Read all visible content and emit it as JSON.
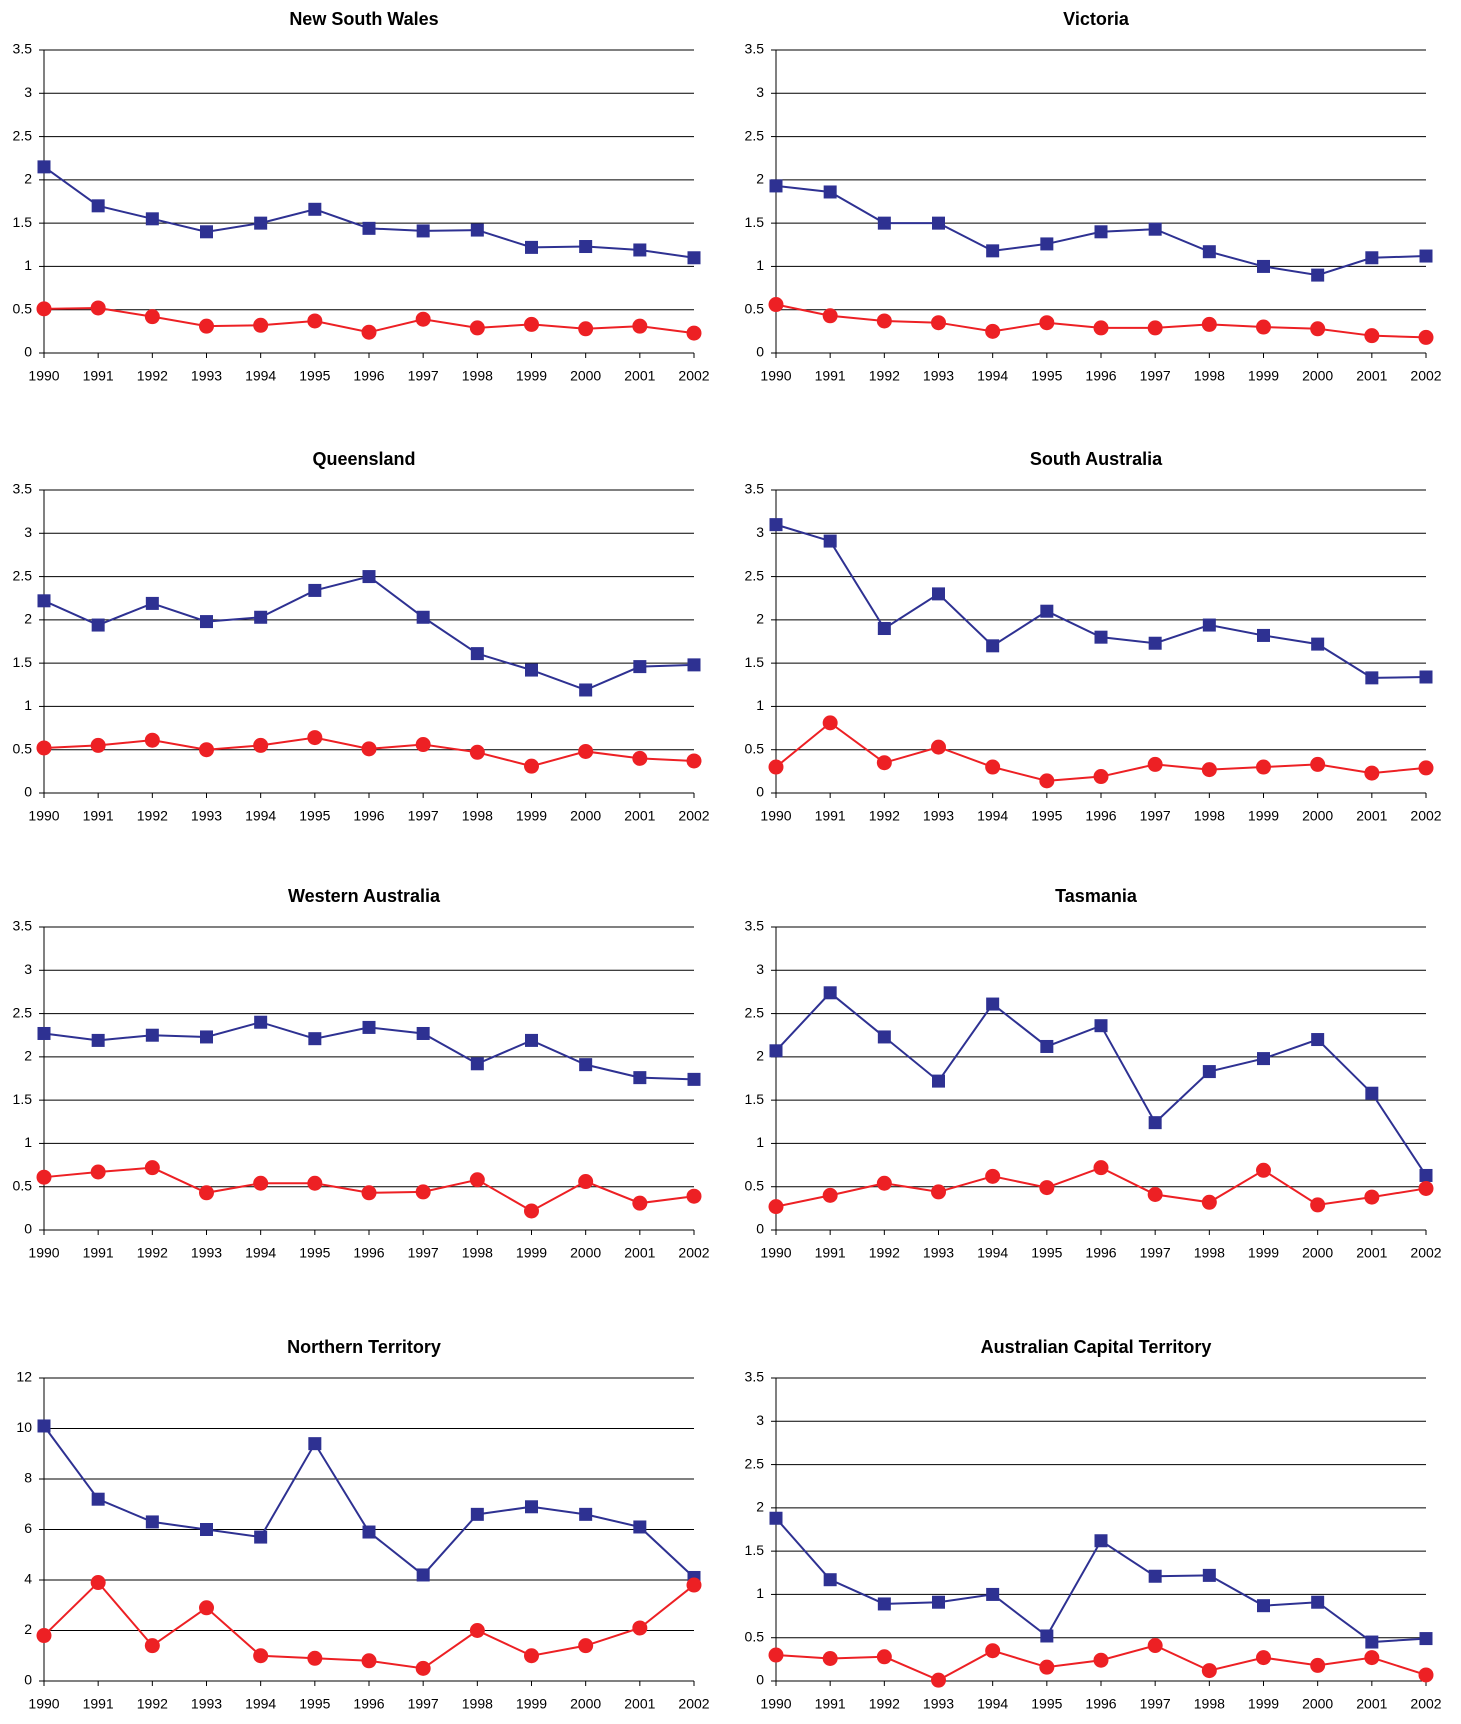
{
  "chart_data": [
    {
      "type": "line",
      "title": "New South Wales",
      "categories": [
        "1990",
        "1991",
        "1992",
        "1993",
        "1994",
        "1995",
        "1996",
        "1997",
        "1998",
        "1999",
        "2000",
        "2001",
        "2002"
      ],
      "series": [
        {
          "color": "#2e3192",
          "marker": "square",
          "values": [
            2.15,
            1.7,
            1.55,
            1.4,
            1.5,
            1.66,
            1.44,
            1.41,
            1.42,
            1.22,
            1.23,
            1.19,
            1.1
          ]
        },
        {
          "color": "#ed2024",
          "marker": "circle",
          "values": [
            0.51,
            0.52,
            0.42,
            0.31,
            0.32,
            0.37,
            0.24,
            0.39,
            0.29,
            0.33,
            0.28,
            0.31,
            0.23
          ]
        }
      ],
      "ylim": [
        0,
        3.5
      ],
      "yticks": [
        0,
        0.5,
        1,
        1.5,
        2,
        2.5,
        3,
        3.5
      ],
      "grid": true
    },
    {
      "type": "line",
      "title": "Victoria",
      "categories": [
        "1990",
        "1991",
        "1992",
        "1993",
        "1994",
        "1995",
        "1996",
        "1997",
        "1998",
        "1999",
        "2000",
        "2001",
        "2002"
      ],
      "series": [
        {
          "color": "#2e3192",
          "marker": "square",
          "values": [
            1.93,
            1.86,
            1.5,
            1.5,
            1.18,
            1.26,
            1.4,
            1.43,
            1.17,
            1.0,
            0.9,
            1.1,
            1.12
          ]
        },
        {
          "color": "#ed2024",
          "marker": "circle",
          "values": [
            0.56,
            0.43,
            0.37,
            0.35,
            0.25,
            0.35,
            0.29,
            0.29,
            0.33,
            0.3,
            0.28,
            0.2,
            0.18
          ]
        }
      ],
      "ylim": [
        0,
        3.5
      ],
      "yticks": [
        0,
        0.5,
        1,
        1.5,
        2,
        2.5,
        3,
        3.5
      ],
      "grid": true
    },
    {
      "type": "line",
      "title": "Queensland",
      "categories": [
        "1990",
        "1991",
        "1992",
        "1993",
        "1994",
        "1995",
        "1996",
        "1997",
        "1998",
        "1999",
        "2000",
        "2001",
        "2002"
      ],
      "series": [
        {
          "color": "#2e3192",
          "marker": "square",
          "values": [
            2.22,
            1.94,
            2.19,
            1.98,
            2.03,
            2.34,
            2.5,
            2.03,
            1.61,
            1.42,
            1.19,
            1.46,
            1.48
          ]
        },
        {
          "color": "#ed2024",
          "marker": "circle",
          "values": [
            0.52,
            0.55,
            0.61,
            0.5,
            0.55,
            0.64,
            0.51,
            0.56,
            0.47,
            0.31,
            0.48,
            0.4,
            0.37
          ]
        }
      ],
      "ylim": [
        0,
        3.5
      ],
      "yticks": [
        0,
        0.5,
        1,
        1.5,
        2,
        2.5,
        3,
        3.5
      ],
      "grid": true
    },
    {
      "type": "line",
      "title": "South Australia",
      "categories": [
        "1990",
        "1991",
        "1992",
        "1993",
        "1994",
        "1995",
        "1996",
        "1997",
        "1998",
        "1999",
        "2000",
        "2001",
        "2002"
      ],
      "series": [
        {
          "color": "#2e3192",
          "marker": "square",
          "values": [
            3.1,
            2.91,
            1.9,
            2.3,
            1.7,
            2.1,
            1.8,
            1.73,
            1.94,
            1.82,
            1.72,
            1.33,
            1.34
          ]
        },
        {
          "color": "#ed2024",
          "marker": "circle",
          "values": [
            0.3,
            0.81,
            0.35,
            0.53,
            0.3,
            0.14,
            0.19,
            0.33,
            0.27,
            0.3,
            0.33,
            0.23,
            0.29
          ]
        }
      ],
      "ylim": [
        0,
        3.5
      ],
      "yticks": [
        0,
        0.5,
        1,
        1.5,
        2,
        2.5,
        3,
        3.5
      ],
      "grid": true
    },
    {
      "type": "line",
      "title": "Western Australia",
      "categories": [
        "1990",
        "1991",
        "1992",
        "1993",
        "1994",
        "1995",
        "1996",
        "1997",
        "1998",
        "1999",
        "2000",
        "2001",
        "2002"
      ],
      "series": [
        {
          "color": "#2e3192",
          "marker": "square",
          "values": [
            2.27,
            2.19,
            2.25,
            2.23,
            2.4,
            2.21,
            2.34,
            2.27,
            1.92,
            2.19,
            1.91,
            1.76,
            1.74
          ]
        },
        {
          "color": "#ed2024",
          "marker": "circle",
          "values": [
            0.61,
            0.67,
            0.72,
            0.43,
            0.54,
            0.54,
            0.43,
            0.44,
            0.58,
            0.22,
            0.56,
            0.31,
            0.39
          ]
        }
      ],
      "ylim": [
        0,
        3.5
      ],
      "yticks": [
        0,
        0.5,
        1,
        1.5,
        2,
        2.5,
        3,
        3.5
      ],
      "grid": true
    },
    {
      "type": "line",
      "title": "Tasmania",
      "categories": [
        "1990",
        "1991",
        "1992",
        "1993",
        "1994",
        "1995",
        "1996",
        "1997",
        "1998",
        "1999",
        "2000",
        "2001",
        "2002"
      ],
      "series": [
        {
          "color": "#2e3192",
          "marker": "square",
          "values": [
            2.07,
            2.74,
            2.23,
            1.72,
            2.61,
            2.12,
            2.36,
            1.24,
            1.83,
            1.98,
            2.2,
            1.58,
            0.63
          ]
        },
        {
          "color": "#ed2024",
          "marker": "circle",
          "values": [
            0.27,
            0.4,
            0.54,
            0.44,
            0.62,
            0.49,
            0.72,
            0.41,
            0.32,
            0.69,
            0.29,
            0.38,
            0.48
          ]
        }
      ],
      "ylim": [
        0,
        3.5
      ],
      "yticks": [
        0,
        0.5,
        1,
        1.5,
        2,
        2.5,
        3,
        3.5
      ],
      "grid": true
    },
    {
      "type": "line",
      "title": "Northern Territory",
      "categories": [
        "1990",
        "1991",
        "1992",
        "1993",
        "1994",
        "1995",
        "1996",
        "1997",
        "1998",
        "1999",
        "2000",
        "2001",
        "2002"
      ],
      "series": [
        {
          "color": "#2e3192",
          "marker": "square",
          "values": [
            10.1,
            7.2,
            6.3,
            6.0,
            5.7,
            9.4,
            5.9,
            4.2,
            6.6,
            6.9,
            6.6,
            6.1,
            4.1
          ]
        },
        {
          "color": "#ed2024",
          "marker": "circle",
          "values": [
            1.8,
            3.9,
            1.4,
            2.9,
            1.0,
            0.9,
            0.8,
            0.5,
            2.0,
            1.0,
            1.4,
            2.1,
            3.8
          ]
        }
      ],
      "ylim": [
        0,
        12
      ],
      "yticks": [
        0,
        2,
        4,
        6,
        8,
        10,
        12
      ],
      "grid": true
    },
    {
      "type": "line",
      "title": "Australian Capital Territory",
      "categories": [
        "1990",
        "1991",
        "1992",
        "1993",
        "1994",
        "1995",
        "1996",
        "1997",
        "1998",
        "1999",
        "2000",
        "2001",
        "2002"
      ],
      "series": [
        {
          "color": "#2e3192",
          "marker": "square",
          "values": [
            1.88,
            1.17,
            0.89,
            0.91,
            1.0,
            0.52,
            1.62,
            1.21,
            1.22,
            0.87,
            0.91,
            0.45,
            0.49
          ]
        },
        {
          "color": "#ed2024",
          "marker": "circle",
          "values": [
            0.3,
            0.26,
            0.28,
            0.01,
            0.35,
            0.16,
            0.24,
            0.41,
            0.12,
            0.27,
            0.18,
            0.27,
            0.07
          ]
        }
      ],
      "ylim": [
        0,
        3.5
      ],
      "yticks": [
        0,
        0.5,
        1,
        1.5,
        2,
        2.5,
        3,
        3.5
      ],
      "grid": true
    }
  ]
}
